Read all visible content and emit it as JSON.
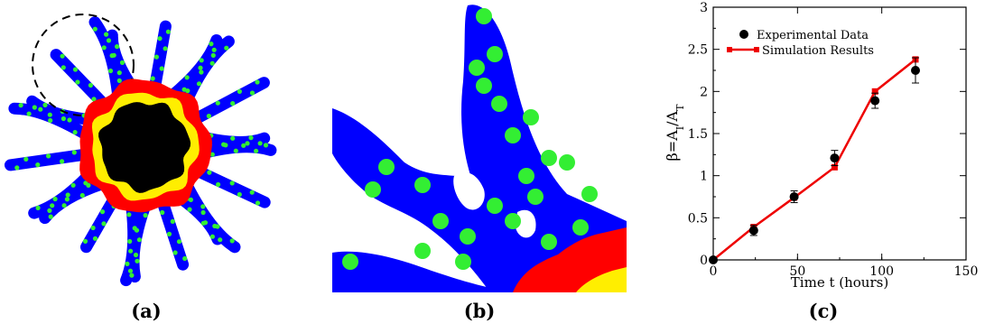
{
  "captions": {
    "a": "(a)",
    "b": "(b)",
    "c": "(c)"
  },
  "colors": {
    "tumor_core": "#000000",
    "yellow_layer": "#ffee00",
    "red_layer": "#ff0000",
    "branches": "#0000ff",
    "cells": "#33ee33",
    "series_line": "#ee0000"
  },
  "chart_data": {
    "type": "line",
    "title": "",
    "xlabel": "Time t (hours)",
    "ylabel": "β=A_I/A_T",
    "xlim": [
      0,
      150
    ],
    "ylim": [
      0,
      3
    ],
    "xticks": [
      "0",
      "50",
      "100",
      "150"
    ],
    "yticks": [
      "0",
      "0.5",
      "1",
      "1.5",
      "2",
      "2.5",
      "3"
    ],
    "legend_position": "top-left",
    "grid": false,
    "series": [
      {
        "name": "Experimental Data",
        "kind": "scatter",
        "x": [
          0,
          24,
          48,
          72,
          96,
          120
        ],
        "y": [
          0,
          0.35,
          0.75,
          1.21,
          1.89,
          2.25
        ],
        "err": [
          0,
          0.06,
          0.07,
          0.09,
          0.09,
          0.15
        ]
      },
      {
        "name": "Simulation Results",
        "kind": "line",
        "x": [
          0,
          24,
          48,
          72,
          96,
          120
        ],
        "y": [
          0,
          0.39,
          0.74,
          1.1,
          2.0,
          2.38
        ]
      }
    ]
  }
}
